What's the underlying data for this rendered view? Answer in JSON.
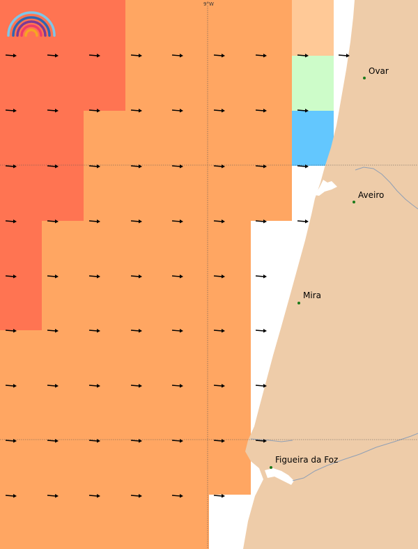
{
  "map": {
    "colors": {
      "sea_high": "#ff7452",
      "sea_mid": "#ffa662",
      "sea_low": "#ffc997",
      "sea_green": "#cdfcc9",
      "sea_blue": "#63c7fe",
      "land": "#eecca9",
      "water_edge": "#ffffff",
      "river": "#8f9fb5",
      "city_dot": "#1a7a1a"
    },
    "graticule": {
      "meridian_label": "9°W"
    },
    "logo": {
      "name": "rainbow-logo"
    },
    "arrow_icon": "east-arrow-icon",
    "cities": [
      {
        "name": "Ovar"
      },
      {
        "name": "Aveiro"
      },
      {
        "name": "Mira"
      },
      {
        "name": "Figueira da Foz"
      }
    ]
  }
}
